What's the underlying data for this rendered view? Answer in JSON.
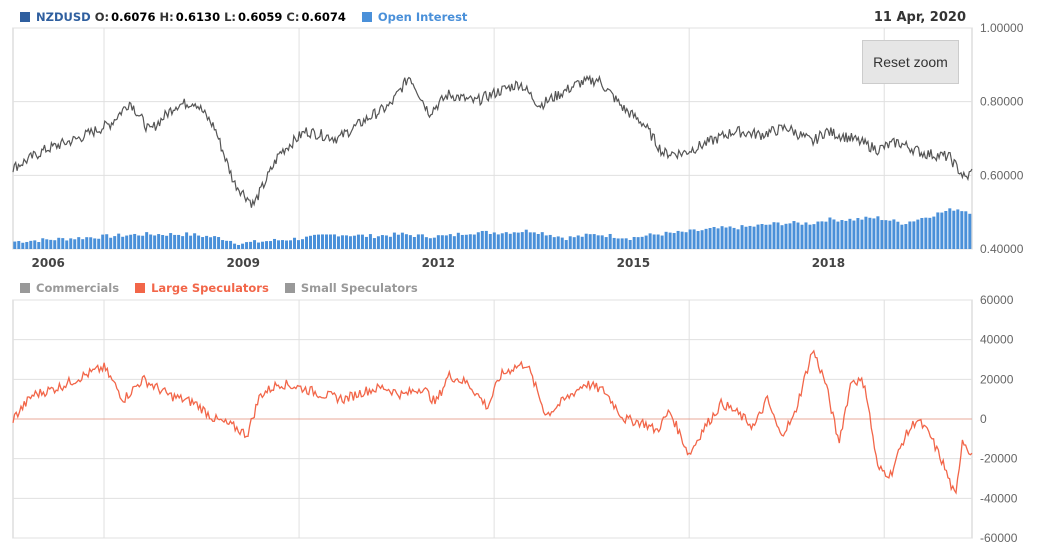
{
  "top_legend": {
    "symbol": "NZDUSD",
    "open_label": "O:",
    "open_value": "0.6076",
    "high_label": "H:",
    "high_value": "0.6130",
    "low_label": "L:",
    "low_value": "0.6059",
    "close_label": "C:",
    "close_value": "0.6074",
    "open_interest_label": "Open Interest"
  },
  "date_label": "11 Apr, 2020",
  "reset_zoom_label": "Reset zoom",
  "bottom_legend": {
    "commercials": "Commercials",
    "large_speculators": "Large Speculators",
    "small_speculators": "Small Speculators"
  },
  "colors": {
    "price": "#555555",
    "open_interest": "#4a90d9",
    "symbol_swatch": "#2f5f9f",
    "large_speculators": "#f26649",
    "commercials": "#999999",
    "small_speculators": "#999999",
    "grid": "#e0e0e0"
  },
  "chart_data": [
    {
      "type": "line",
      "series": [
        {
          "name": "NZDUSD",
          "x": [
            2005.5,
            2006.0,
            2006.5,
            2007.0,
            2007.3,
            2007.6,
            2008.0,
            2008.3,
            2008.6,
            2008.9,
            2009.2,
            2009.6,
            2010.0,
            2010.5,
            2011.0,
            2011.3,
            2011.6,
            2011.9,
            2012.2,
            2012.6,
            2013.0,
            2013.3,
            2013.6,
            2013.9,
            2014.2,
            2014.5,
            2014.9,
            2015.2,
            2015.5,
            2015.8,
            2016.2,
            2016.6,
            2017.0,
            2017.4,
            2017.8,
            2018.0,
            2018.4,
            2018.8,
            2019.1,
            2019.5,
            2019.9,
            2020.15,
            2020.25
          ],
          "values": [
            0.62,
            0.67,
            0.7,
            0.74,
            0.8,
            0.72,
            0.79,
            0.8,
            0.73,
            0.58,
            0.52,
            0.66,
            0.72,
            0.7,
            0.76,
            0.79,
            0.87,
            0.77,
            0.82,
            0.8,
            0.83,
            0.85,
            0.79,
            0.82,
            0.85,
            0.86,
            0.78,
            0.74,
            0.66,
            0.66,
            0.69,
            0.72,
            0.71,
            0.73,
            0.69,
            0.72,
            0.7,
            0.67,
            0.69,
            0.66,
            0.65,
            0.59,
            0.61
          ]
        },
        {
          "name": "Open Interest",
          "x": [
            2005.5,
            2006.5,
            2007.5,
            2008.2,
            2008.7,
            2009.0,
            2009.3,
            2010.0,
            2010.5,
            2011.0,
            2011.5,
            2011.8,
            2012.2,
            2012.5,
            2013.0,
            2013.5,
            2014.0,
            2014.5,
            2015.0,
            2015.4,
            2015.8,
            2016.3,
            2016.8,
            2017.3,
            2017.8,
            2018.0,
            2018.4,
            2018.8,
            2019.2,
            2019.6,
            2020.0,
            2020.25
          ],
          "values": [
            0.42,
            0.43,
            0.44,
            0.44,
            0.43,
            0.415,
            0.42,
            0.43,
            0.44,
            0.435,
            0.44,
            0.435,
            0.435,
            0.445,
            0.445,
            0.45,
            0.43,
            0.44,
            0.43,
            0.44,
            0.445,
            0.455,
            0.46,
            0.47,
            0.47,
            0.48,
            0.48,
            0.485,
            0.47,
            0.49,
            0.51,
            0.5
          ]
        }
      ],
      "xticks": [
        "2006",
        "2009",
        "2012",
        "2015",
        "2018"
      ],
      "yticks": [
        "0.40000",
        "0.60000",
        "0.80000",
        "1.00000"
      ],
      "ylim": [
        0.4,
        1.0
      ],
      "xlim": [
        2005.5,
        2020.25
      ]
    },
    {
      "type": "line",
      "series": [
        {
          "name": "Large Speculators",
          "x": [
            2005.5,
            2005.8,
            2006.2,
            2006.6,
            2006.9,
            2007.2,
            2007.5,
            2007.9,
            2008.3,
            2008.6,
            2008.9,
            2009.1,
            2009.3,
            2009.6,
            2009.9,
            2010.3,
            2010.6,
            2010.9,
            2011.2,
            2011.5,
            2011.8,
            2012.0,
            2012.2,
            2012.5,
            2012.8,
            2013.0,
            2013.2,
            2013.4,
            2013.7,
            2014.0,
            2014.3,
            2014.6,
            2014.9,
            2015.2,
            2015.4,
            2015.6,
            2015.9,
            2016.1,
            2016.4,
            2016.6,
            2016.9,
            2017.1,
            2017.3,
            2017.5,
            2017.8,
            2018.0,
            2018.2,
            2018.4,
            2018.6,
            2018.8,
            2019.0,
            2019.2,
            2019.4,
            2019.6,
            2019.8,
            2020.0,
            2020.1,
            2020.25
          ],
          "values": [
            0,
            12,
            16,
            22,
            26,
            10,
            20,
            12,
            8,
            0,
            -4,
            -8,
            12,
            18,
            16,
            12,
            10,
            14,
            16,
            12,
            16,
            8,
            22,
            18,
            6,
            22,
            26,
            28,
            2,
            10,
            18,
            14,
            0,
            -2,
            -6,
            4,
            -18,
            -6,
            8,
            4,
            -4,
            10,
            -8,
            0,
            35,
            18,
            -12,
            20,
            18,
            -25,
            -28,
            -10,
            0,
            -8,
            -22,
            -40,
            -10,
            -18
          ]
        }
      ],
      "yticks": [
        "-60000",
        "-40000",
        "-20000",
        "0",
        "20000",
        "40000",
        "60000"
      ],
      "ylim": [
        -60000,
        60000
      ],
      "xlim": [
        2005.5,
        2020.25
      ]
    }
  ]
}
